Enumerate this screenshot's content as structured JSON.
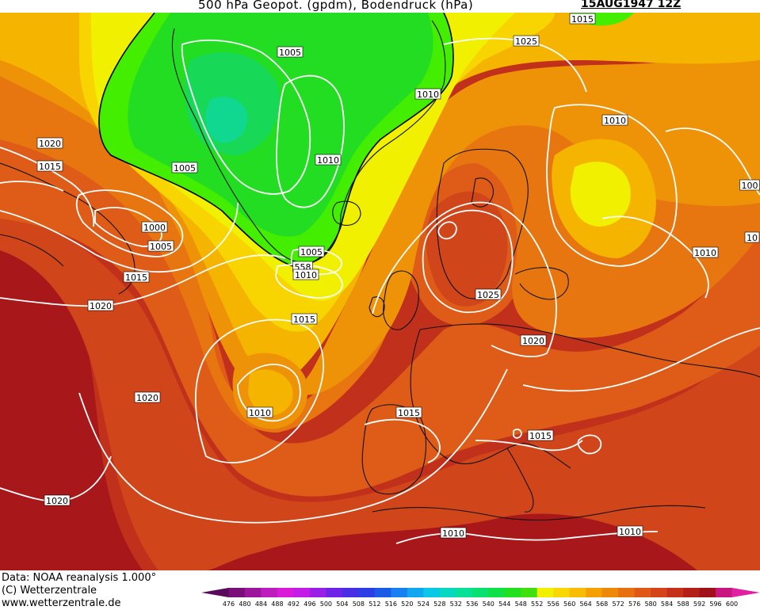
{
  "header": {
    "title": "500 hPa Geopot. (gpdm), Bodendruck (hPa)",
    "date": "15AUG1947 12Z"
  },
  "footer": {
    "data_source": "Data: NOAA reanalysis 1.000°",
    "copyright": "(C) Wetterzentrale",
    "website": "www.wetterzentrale.de"
  },
  "colorbar": {
    "ticks": [
      "476",
      "480",
      "484",
      "488",
      "492",
      "496",
      "500",
      "504",
      "508",
      "512",
      "516",
      "520",
      "524",
      "528",
      "532",
      "536",
      "540",
      "544",
      "548",
      "552",
      "556",
      "560",
      "564",
      "568",
      "572",
      "576",
      "580",
      "584",
      "588",
      "592",
      "596",
      "600"
    ],
    "colors": [
      "#5a0a5a",
      "#7a0f7a",
      "#9b169b",
      "#bd1dbd",
      "#d91ad9",
      "#c21ce6",
      "#9a1fe6",
      "#6e24e6",
      "#4a2ee6",
      "#2c3fe6",
      "#1c5be6",
      "#1880f0",
      "#10a6f0",
      "#08c8e8",
      "#08d8c0",
      "#08e098",
      "#08e070",
      "#10e048",
      "#20e020",
      "#40e010",
      "#f0f000",
      "#f8d800",
      "#f8bc00",
      "#f4a000",
      "#ee8808",
      "#e87010",
      "#e05818",
      "#d44418",
      "#c43018",
      "#b42018",
      "#a01018",
      "#c81880",
      "#e020a0"
    ]
  },
  "map": {
    "legend_colors": {
      "z548": "#22dd22",
      "z552": "#44ee00",
      "z556": "#f0f000",
      "z560": "#f8d400",
      "z564": "#f4b400",
      "z568": "#ee9208",
      "z572": "#e87610",
      "z576": "#de5c18",
      "z580": "#d0461a",
      "z584": "#c0301a",
      "z588": "#a8181a",
      "isobar": "#ffffff",
      "coast": "#101010"
    },
    "isobar_labels": [
      {
        "id": "1005-a",
        "text": "1005"
      },
      {
        "id": "1010-a",
        "text": "1010"
      },
      {
        "id": "1025-a",
        "text": "1025"
      },
      {
        "id": "1010-b",
        "text": "1010"
      },
      {
        "id": "1020-a",
        "text": "1020"
      },
      {
        "id": "1015-a",
        "text": "1015"
      },
      {
        "id": "1005-b",
        "text": "1005"
      },
      {
        "id": "1010-c",
        "text": "1010"
      },
      {
        "id": "1000-a",
        "text": "1000"
      },
      {
        "id": "1005-c",
        "text": "1005"
      },
      {
        "id": "1015-b",
        "text": "1015"
      },
      {
        "id": "1020-b",
        "text": "1020"
      },
      {
        "id": "1005-d",
        "text": "1005"
      },
      {
        "id": "558-a",
        "text": "558"
      },
      {
        "id": "1010-d",
        "text": "1010"
      },
      {
        "id": "1015-c",
        "text": "1015"
      },
      {
        "id": "1025-b",
        "text": "1025"
      },
      {
        "id": "1020-c",
        "text": "1020"
      },
      {
        "id": "1010-e",
        "text": "1010"
      },
      {
        "id": "1020-d",
        "text": "1020"
      },
      {
        "id": "1010-f",
        "text": "1010"
      },
      {
        "id": "1015-d",
        "text": "1015"
      },
      {
        "id": "1015-e",
        "text": "1015"
      },
      {
        "id": "1020-e",
        "text": "1020"
      },
      {
        "id": "1010-g",
        "text": "1010"
      },
      {
        "id": "1010-h",
        "text": "1010"
      },
      {
        "id": "1015-f",
        "text": "1015"
      },
      {
        "id": "100-a",
        "text": "100"
      },
      {
        "id": "10-a",
        "text": "10"
      }
    ]
  }
}
